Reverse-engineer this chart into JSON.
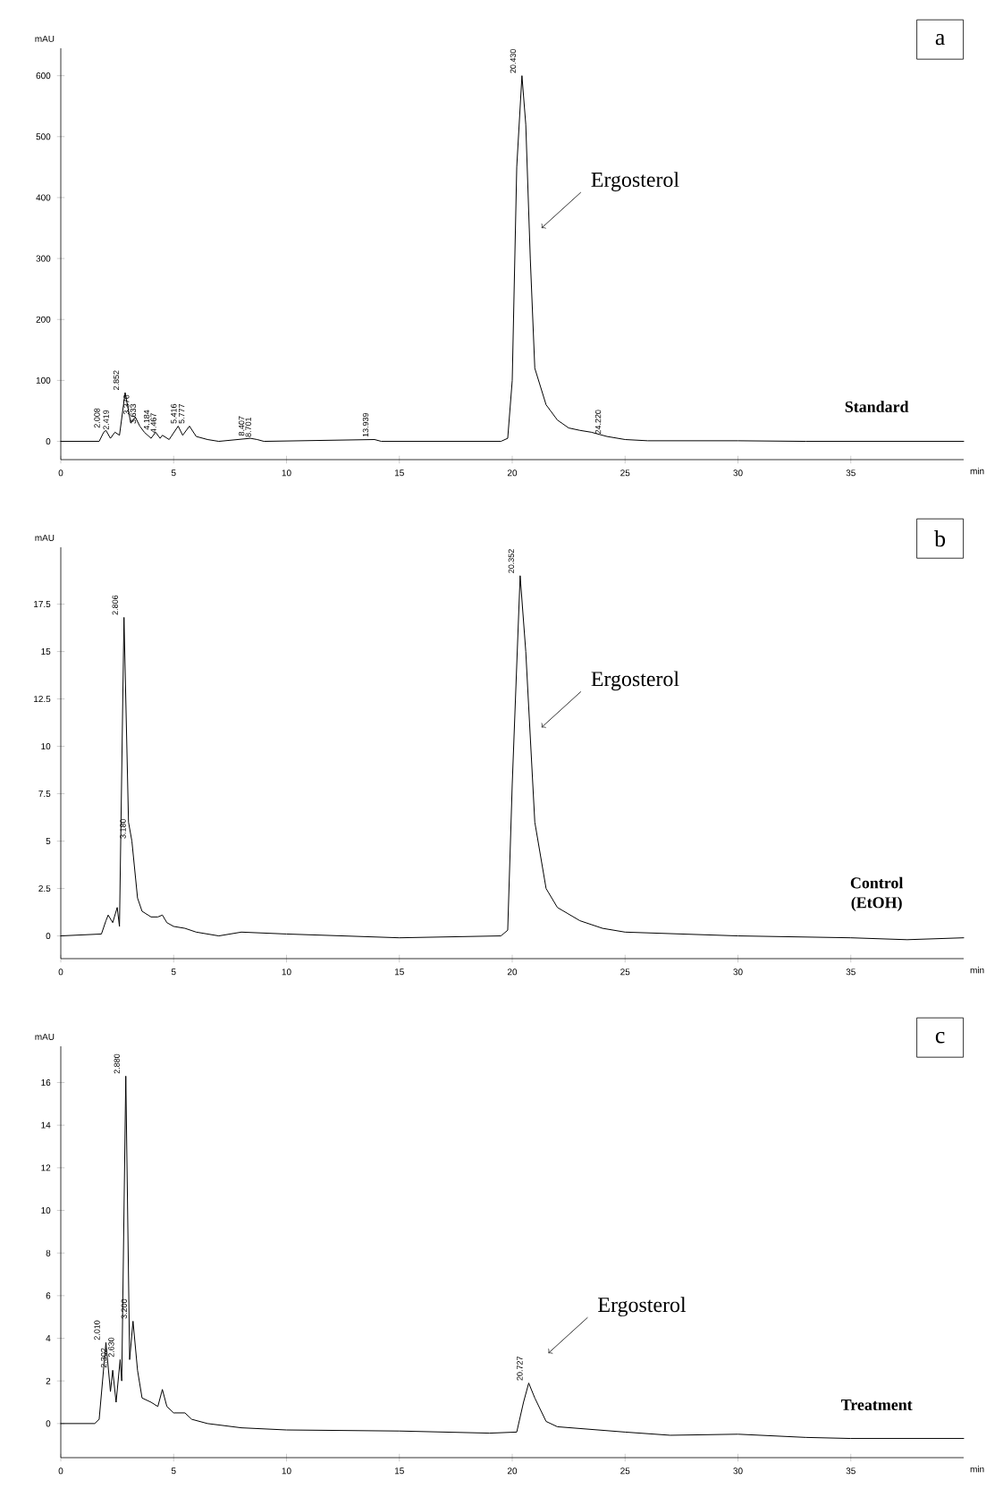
{
  "chart_data": [
    {
      "type": "line",
      "xlabel": "min",
      "ylabel": "mAU",
      "xlim": [
        0,
        40
      ],
      "ylim": [
        -30,
        645
      ],
      "xticks": [
        0,
        5,
        10,
        15,
        20,
        25,
        30,
        35
      ],
      "yticks": [
        0,
        100,
        200,
        300,
        400,
        500,
        600
      ],
      "series": [
        {
          "color": "#000000",
          "x": [
            0,
            1.7,
            1.9,
            2.0,
            2.2,
            2.4,
            2.6,
            2.85,
            3.1,
            3.3,
            3.5,
            3.7,
            4.0,
            4.2,
            4.4,
            4.5,
            4.8,
            5.2,
            5.4,
            5.7,
            6.0,
            6.5,
            7,
            8.4,
            8.7,
            9,
            13.9,
            14.2,
            19.5,
            19.8,
            20.0,
            20.2,
            20.43,
            20.6,
            20.8,
            21.0,
            21.5,
            22,
            22.5,
            23,
            23.5,
            24.2,
            25,
            26,
            30,
            33,
            40
          ],
          "values": [
            0,
            0,
            15,
            18,
            5,
            15,
            10,
            80,
            30,
            40,
            25,
            15,
            5,
            15,
            5,
            10,
            3,
            25,
            10,
            25,
            8,
            3,
            0,
            5,
            3,
            0,
            3,
            0,
            0,
            5,
            100,
            450,
            600,
            520,
            300,
            120,
            60,
            35,
            22,
            18,
            15,
            8,
            3,
            1,
            1,
            0,
            0
          ]
        }
      ],
      "annotations": [
        "a",
        "Standard",
        {
          "text": "Ergosterol",
          "x": 21.3,
          "y": 350
        },
        {
          "text": "2.008",
          "x": 2.0,
          "y": 18
        },
        {
          "text": "2.419",
          "x": 2.4,
          "y": 15
        },
        {
          "text": "2.852",
          "x": 2.85,
          "y": 80
        },
        {
          "text": "3.376",
          "x": 3.3,
          "y": 40
        },
        {
          "text": "3.633",
          "x": 3.6,
          "y": 25
        },
        {
          "text": "4.184",
          "x": 4.2,
          "y": 15
        },
        {
          "text": "4.467",
          "x": 4.5,
          "y": 10
        },
        {
          "text": "5.416",
          "x": 5.4,
          "y": 25
        },
        {
          "text": "5.777",
          "x": 5.75,
          "y": 25
        },
        {
          "text": "8.407",
          "x": 8.4,
          "y": 5
        },
        {
          "text": "8.701",
          "x": 8.7,
          "y": 3
        },
        {
          "text": "13.939",
          "x": 13.9,
          "y": 3
        },
        {
          "text": "20.430",
          "x": 20.43,
          "y": 600
        },
        {
          "text": "24.220",
          "x": 24.2,
          "y": 8
        }
      ]
    },
    {
      "type": "line",
      "xlabel": "min",
      "ylabel": "mAU",
      "xlim": [
        0,
        40
      ],
      "ylim": [
        -1.2,
        20.5
      ],
      "xticks": [
        0,
        5,
        10,
        15,
        20,
        25,
        30,
        35
      ],
      "yticks": [
        0,
        2.5,
        5,
        7.5,
        10,
        12.5,
        15,
        17.5
      ],
      "series": [
        {
          "color": "#000000",
          "x": [
            0,
            1.8,
            2.0,
            2.1,
            2.3,
            2.5,
            2.6,
            2.8,
            3.0,
            3.15,
            3.4,
            3.6,
            4,
            4.3,
            4.5,
            4.7,
            5,
            5.5,
            6,
            7,
            8,
            10,
            15,
            19.5,
            19.8,
            20.0,
            20.35,
            20.6,
            21,
            21.5,
            22,
            23,
            24,
            25,
            30,
            35,
            37.5,
            40
          ],
          "values": [
            0,
            0.1,
            0.8,
            1.1,
            0.7,
            1.5,
            0.5,
            16.8,
            6,
            5,
            2,
            1.3,
            1.0,
            1.0,
            1.1,
            0.7,
            0.5,
            0.4,
            0.2,
            0,
            0.2,
            0.1,
            -0.1,
            0,
            0.3,
            8,
            19,
            15,
            6,
            2.5,
            1.5,
            0.8,
            0.4,
            0.2,
            0,
            -0.1,
            -0.2,
            -0.1
          ]
        }
      ],
      "annotations": [
        "b",
        "Control (EtOH)",
        {
          "text": "Ergosterol",
          "x": 21.3,
          "y": 11
        },
        {
          "text": "2.806",
          "x": 2.8,
          "y": 16.8
        },
        {
          "text": "3.180",
          "x": 3.15,
          "y": 5
        },
        {
          "text": "20.352",
          "x": 20.35,
          "y": 19
        }
      ]
    },
    {
      "type": "line",
      "xlabel": "min",
      "ylabel": "mAU",
      "xlim": [
        0,
        40
      ],
      "ylim": [
        -1.6,
        17.7
      ],
      "xticks": [
        0,
        5,
        10,
        15,
        20,
        25,
        30,
        35
      ],
      "yticks": [
        0,
        2,
        4,
        6,
        8,
        10,
        12,
        14,
        16
      ],
      "series": [
        {
          "color": "#000000",
          "x": [
            0,
            1.5,
            1.7,
            2.0,
            2.2,
            2.3,
            2.45,
            2.63,
            2.7,
            2.88,
            3.05,
            3.2,
            3.4,
            3.6,
            4.0,
            4.3,
            4.5,
            4.7,
            5.0,
            5.5,
            5.8,
            6.5,
            8,
            10,
            15,
            19,
            20.2,
            20.5,
            20.73,
            21,
            21.5,
            22,
            25,
            27,
            30,
            33,
            35,
            40
          ],
          "values": [
            0,
            0,
            0.2,
            3.8,
            1.5,
            2.5,
            1.0,
            3.0,
            2,
            16.3,
            3,
            4.8,
            2.5,
            1.2,
            1.0,
            0.8,
            1.6,
            0.8,
            0.5,
            0.5,
            0.2,
            0,
            -0.2,
            -0.3,
            -0.35,
            -0.45,
            -0.4,
            1.0,
            1.9,
            1.2,
            0.1,
            -0.15,
            -0.4,
            -0.55,
            -0.5,
            -0.65,
            -0.7,
            -0.7
          ]
        }
      ],
      "annotations": [
        "c",
        "Treatment",
        {
          "text": "Ergosterol",
          "x": 21.6,
          "y": 3.3
        },
        {
          "text": "2.010",
          "x": 2.0,
          "y": 3.8
        },
        {
          "text": "2.302",
          "x": 2.3,
          "y": 2.5
        },
        {
          "text": "2.630",
          "x": 2.63,
          "y": 3.0
        },
        {
          "text": "2.880",
          "x": 2.88,
          "y": 16.3
        },
        {
          "text": "3.200",
          "x": 3.2,
          "y": 4.8
        },
        {
          "text": "20.727",
          "x": 20.73,
          "y": 1.9
        }
      ]
    }
  ]
}
